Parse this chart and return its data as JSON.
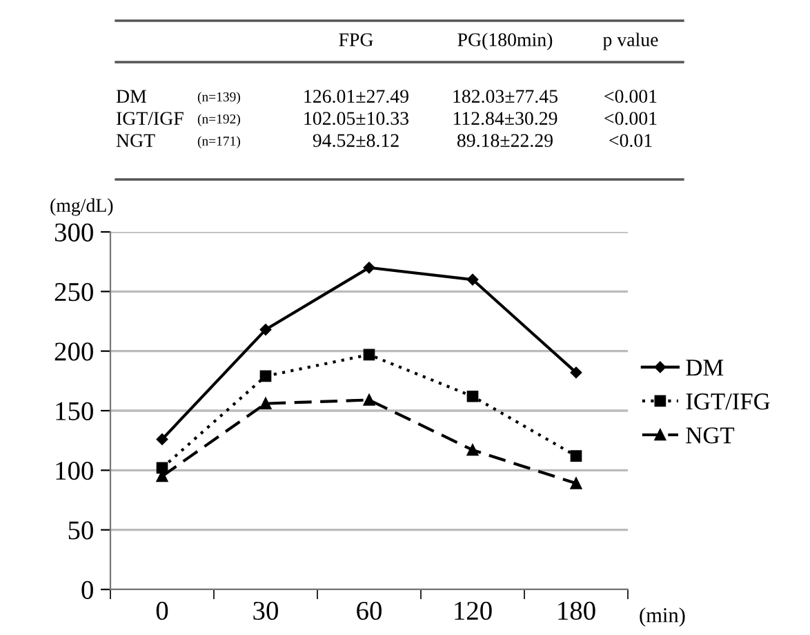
{
  "chart_data": {
    "type": "line",
    "ylabel": "(mg/dL)",
    "xlabel": "(min)",
    "categories": [
      "0",
      "30",
      "60",
      "120",
      "180"
    ],
    "series": [
      {
        "name": "DM",
        "color": "#000000",
        "marker": "diamond",
        "line_style": "solid",
        "values": [
          126,
          218,
          270,
          260,
          182
        ]
      },
      {
        "name": "IGT/IFG",
        "color": "#000000",
        "marker": "square",
        "line_style": "dotted",
        "values": [
          102,
          179,
          197,
          162,
          112
        ]
      },
      {
        "name": "NGT",
        "color": "#000000",
        "marker": "triangle",
        "line_style": "dashed",
        "values": [
          95,
          156,
          159,
          117,
          89
        ]
      }
    ],
    "ylim": [
      0,
      300
    ],
    "yticks": [
      0,
      50,
      100,
      150,
      200,
      250,
      300
    ],
    "grid": "y",
    "legend": "right",
    "annotations": [
      "FPG",
      "PG(180min)",
      "p value",
      "DM",
      "(n=139)",
      "126.01±27.49",
      "182.03±77.45",
      "<0.001",
      "IGT/IGF",
      "(n=192)",
      "102.05±10.33",
      "112.84±30.29",
      "<0.001",
      "NGT",
      "(n=171)",
      "94.52±8.12",
      "89.18±22.29",
      "<0.01"
    ]
  }
}
